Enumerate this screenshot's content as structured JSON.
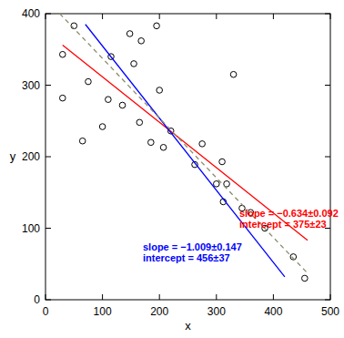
{
  "chart_data": {
    "type": "scatter",
    "x_label": "x",
    "y_label": "y",
    "xlim": [
      0,
      500
    ],
    "xticks": [
      0,
      100,
      200,
      300,
      400,
      500
    ],
    "ylim": [
      0,
      400
    ],
    "yticks": [
      0,
      100,
      200,
      300,
      400
    ],
    "grid": false,
    "series": [
      {
        "type": "scatter",
        "marker": "circle",
        "color": "#000000",
        "x": [
          30,
          30,
          50,
          65,
          75,
          100,
          110,
          115,
          135,
          148,
          155,
          165,
          168,
          185,
          195,
          200,
          207,
          220,
          262,
          275,
          300,
          310,
          312,
          318,
          330,
          345,
          360,
          385,
          435,
          455
        ],
        "values": [
          343,
          282,
          383,
          222,
          305,
          242,
          280,
          340,
          272,
          372,
          330,
          248,
          362,
          220,
          383,
          293,
          213,
          236,
          189,
          218,
          162,
          193,
          137,
          162,
          315,
          128,
          122,
          100,
          60,
          30
        ]
      },
      {
        "type": "line",
        "line_style": "solid",
        "color": "#ff0000",
        "x": [
          30,
          460
        ],
        "values": [
          356,
          83
        ]
      },
      {
        "type": "line",
        "line_style": "solid",
        "color": "#0000ff",
        "x": [
          70,
          420
        ],
        "values": [
          385,
          32
        ]
      },
      {
        "type": "line",
        "line_style": "dashed",
        "color": "#8c8c70",
        "x": [
          25,
          460
        ],
        "values": [
          400,
          37
        ]
      }
    ],
    "annotations": [
      {
        "text": "slope = −0.634±0.092",
        "color": "#ff0000"
      },
      {
        "text": "intercept = 375±23",
        "color": "#ff0000"
      },
      {
        "text": "slope = −1.009±0.147",
        "color": "#0000ff"
      },
      {
        "text": "intercept = 456±37",
        "color": "#0000ff"
      }
    ]
  }
}
